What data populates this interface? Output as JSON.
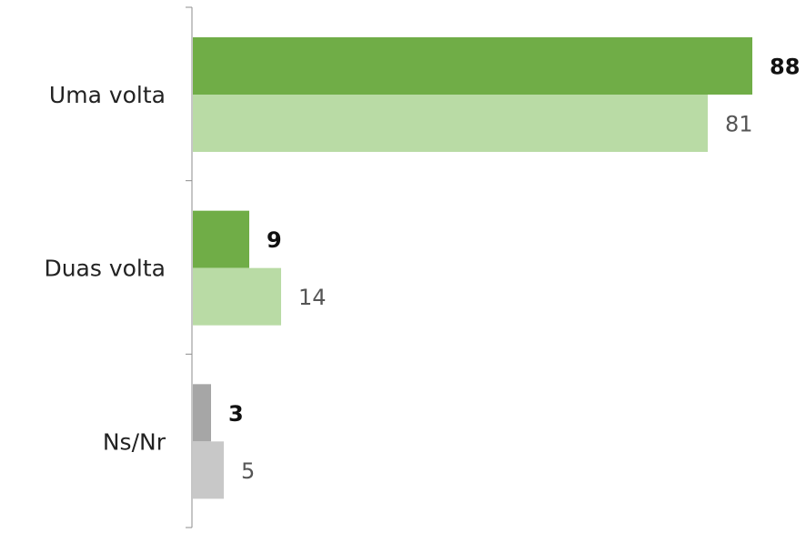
{
  "chart_data": {
    "type": "bar",
    "orientation": "horizontal",
    "categories": [
      "Uma volta",
      "Duas volta",
      "Ns/Nr"
    ],
    "series": [
      {
        "values": [
          88,
          9,
          3
        ],
        "colors": [
          "#70ad47",
          "#70ad47",
          "#a6a6a6"
        ],
        "label_weight": "bold"
      },
      {
        "values": [
          81,
          14,
          5
        ],
        "colors": [
          "#b9dba5",
          "#b9dba5",
          "#c8c8c8"
        ],
        "label_weight": "normal"
      }
    ],
    "xlim": [
      0,
      88
    ],
    "grid": false,
    "legend": "none",
    "title": "",
    "xlabel": "",
    "ylabel": ""
  }
}
